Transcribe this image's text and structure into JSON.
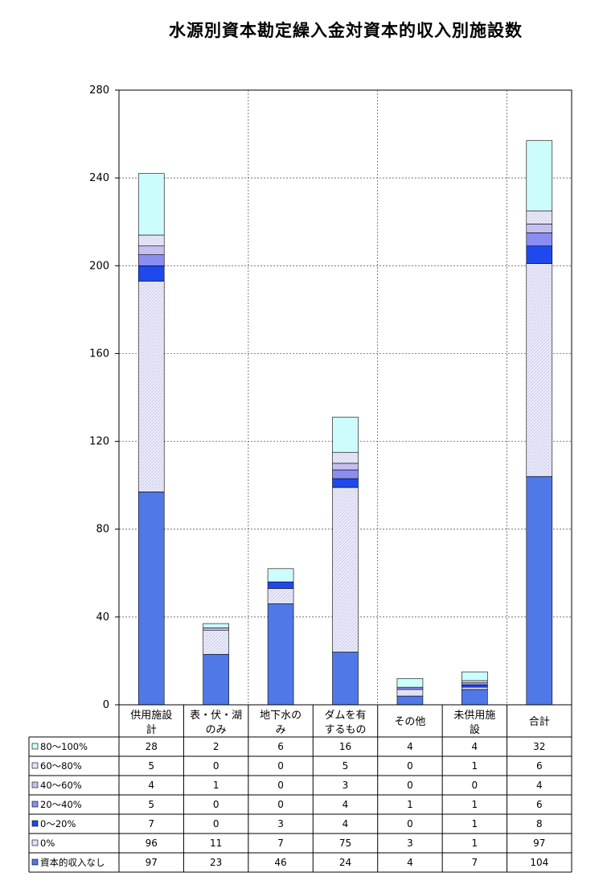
{
  "chart_data": {
    "type": "bar",
    "stacked": true,
    "title": "水源別資本勘定繰入金対資本的収入別施設数",
    "xlabel": "",
    "ylabel": "",
    "ylim": [
      0,
      280
    ],
    "yticks": [
      0,
      40,
      80,
      120,
      160,
      200,
      240,
      280
    ],
    "grid": "dashed-horizontal",
    "legend": "data-table",
    "categories": [
      [
        "供用施設",
        "計"
      ],
      [
        "表・伏・湖",
        "のみ"
      ],
      [
        "地下水の",
        "み"
      ],
      [
        "ダムを有",
        "するもの"
      ],
      [
        "その他"
      ],
      [
        "未供用施",
        "設"
      ],
      [
        "合計"
      ]
    ],
    "series": [
      {
        "name": "資本的収入なし",
        "color": "#5078e6",
        "values": [
          97,
          23,
          46,
          24,
          4,
          7,
          104
        ]
      },
      {
        "name": "0%",
        "color": "#e8e8f8",
        "values": [
          96,
          11,
          7,
          75,
          3,
          1,
          97
        ]
      },
      {
        "name": "0～20%",
        "color": "#1f49ee",
        "values": [
          7,
          0,
          3,
          4,
          0,
          1,
          8
        ]
      },
      {
        "name": "20～40%",
        "color": "#8a8ef2",
        "values": [
          5,
          0,
          0,
          4,
          1,
          1,
          6
        ]
      },
      {
        "name": "40～60%",
        "color": "#c7c3f3",
        "values": [
          4,
          1,
          0,
          3,
          0,
          0,
          4
        ]
      },
      {
        "name": "60～80%",
        "color": "#e6e6f7",
        "values": [
          5,
          0,
          0,
          5,
          0,
          1,
          6
        ]
      },
      {
        "name": "80～100%",
        "color": "#ccfcfb",
        "values": [
          28,
          2,
          6,
          16,
          4,
          4,
          32
        ]
      }
    ],
    "table_order": [
      "80～100%",
      "60～80%",
      "40～60%",
      "20～40%",
      "0～20%",
      "0%",
      "資本的収入なし"
    ]
  }
}
